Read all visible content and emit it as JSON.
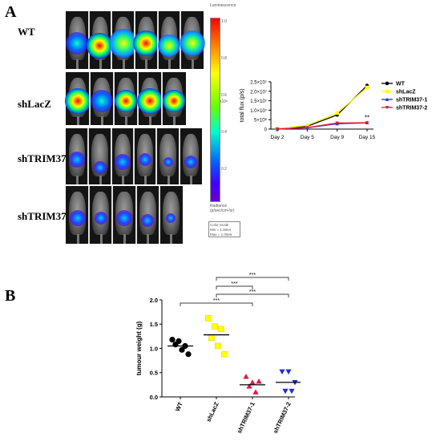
{
  "panel_a": {
    "letter": "A",
    "groups": [
      "WT",
      "shLacZ",
      "shTRIM37-1",
      "shTRIM37-2"
    ],
    "colorbar": {
      "title": "Luminescence",
      "ticks": [
        "1.0",
        "0.8",
        "0.6",
        "0.4",
        "0.2"
      ],
      "unit": "x10⁶",
      "radiance_label": "Radiance",
      "radiance_unit": "(p/sec/cm²/sr)",
      "scale_title": "Color Scale",
      "scale_min": "Min = 1.00e4",
      "scale_max": "Max = 1.00e6"
    }
  },
  "panel_b": {
    "letter": "B"
  },
  "chart_data": [
    {
      "type": "line",
      "title": "",
      "xlabel": "",
      "ylabel": "total flux (p/s)",
      "categories": [
        "Day 2",
        "Day 5",
        "Day 9",
        "Day 15"
      ],
      "ylim": [
        0,
        25000000
      ],
      "yticks": [
        "0",
        "5×10⁶",
        "1.0×10⁷",
        "1.5×10⁷",
        "2.0×10⁷",
        "2.5×10⁷"
      ],
      "yticks_values": [
        0,
        5000000,
        10000000,
        15000000,
        20000000,
        25000000
      ],
      "legend_position": "top-right",
      "series": [
        {
          "name": "WT",
          "color": "#000000",
          "marker": "circle",
          "values": [
            100000,
            1500000,
            7500000,
            23000000
          ]
        },
        {
          "name": "shLacZ",
          "color": "#ffff00",
          "marker": "square",
          "values": [
            150000,
            2000000,
            8500000,
            22000000
          ]
        },
        {
          "name": "shTRIM37-1",
          "color": "#1f2fd0",
          "marker": "triangle",
          "values": [
            50000,
            700000,
            2800000,
            3300000
          ]
        },
        {
          "name": "shTRIM37-2",
          "color": "#e8163c",
          "marker": "triangle-down",
          "values": [
            80000,
            800000,
            3200000,
            3400000
          ]
        }
      ],
      "annotations": [
        {
          "text": "**",
          "category": "Day 15",
          "value": 4800000
        }
      ]
    },
    {
      "type": "scatter",
      "title": "",
      "xlabel": "",
      "ylabel": "tumour weight (g)",
      "categories": [
        "WT",
        "shLacZ",
        "shTRIM37-1",
        "shTRIM37-2"
      ],
      "ylim": [
        0,
        2.0
      ],
      "yticks": [
        "0.0",
        "0.5",
        "1.0",
        "1.5",
        "2.0"
      ],
      "yticks_values": [
        0,
        0.5,
        1.0,
        1.5,
        2.0
      ],
      "groups": [
        {
          "name": "WT",
          "color": "#000000",
          "marker": "circle",
          "points": [
            1.18,
            1.15,
            1.05,
            1.08,
            0.97,
            0.88
          ],
          "mean": 1.05
        },
        {
          "name": "shLacZ",
          "color": "#ffff00",
          "marker": "square",
          "points": [
            1.62,
            1.45,
            1.4,
            1.22,
            1.05,
            0.88
          ],
          "mean": 1.28
        },
        {
          "name": "shTRIM37-1",
          "color": "#e8163c",
          "marker": "triangle",
          "points": [
            0.42,
            0.3,
            0.32,
            0.22,
            0.1
          ],
          "mean": 0.25
        },
        {
          "name": "shTRIM37-2",
          "color": "#1f2fd0",
          "marker": "triangle-down",
          "points": [
            0.52,
            0.52,
            0.3,
            0.12,
            0.12
          ],
          "mean": 0.3
        }
      ],
      "significance": [
        {
          "from": "shLacZ",
          "to": "shTRIM37-2",
          "label": "***"
        },
        {
          "from": "shLacZ",
          "to": "shTRIM37-1",
          "label": "***"
        },
        {
          "from": "shLacZ",
          "to": "shTRIM37-2",
          "label": "***"
        },
        {
          "from": "WT",
          "to": "shTRIM37-1",
          "label": "***"
        }
      ]
    }
  ]
}
